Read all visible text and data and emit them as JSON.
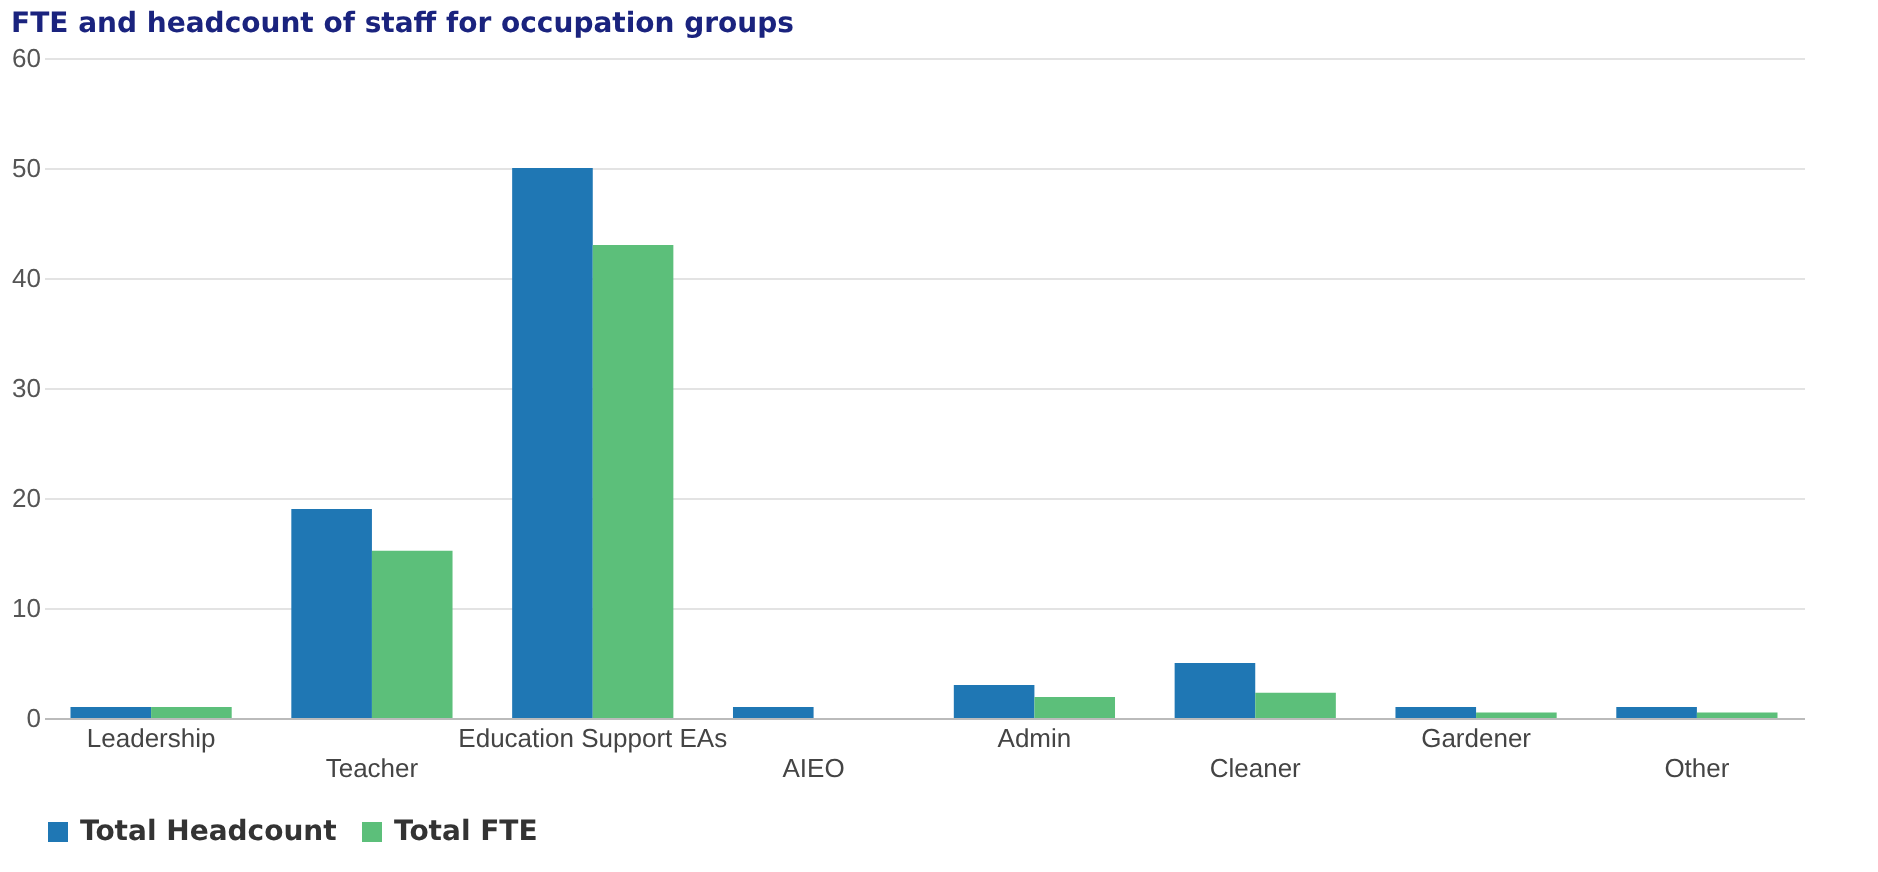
{
  "chart_data": {
    "type": "bar",
    "title": "FTE and headcount of staff for occupation groups",
    "categories": [
      "Leadership",
      "Teacher",
      "Education Support EAs",
      "AIEO",
      "Admin",
      "Cleaner",
      "Gardener",
      "Other"
    ],
    "series": [
      {
        "name": "Total Headcount",
        "color": "#1f77b4",
        "values": [
          1,
          19,
          50,
          1,
          3,
          5,
          1,
          1
        ]
      },
      {
        "name": "Total FTE",
        "color": "#5cbf7a",
        "values": [
          1,
          15.2,
          43,
          null,
          1.9,
          2.3,
          0.5,
          0.5
        ]
      }
    ],
    "ylim": [
      0,
      60
    ],
    "yticks": [
      0,
      10,
      20,
      30,
      40,
      50,
      60
    ],
    "grid": "y",
    "legend": "bottom"
  }
}
